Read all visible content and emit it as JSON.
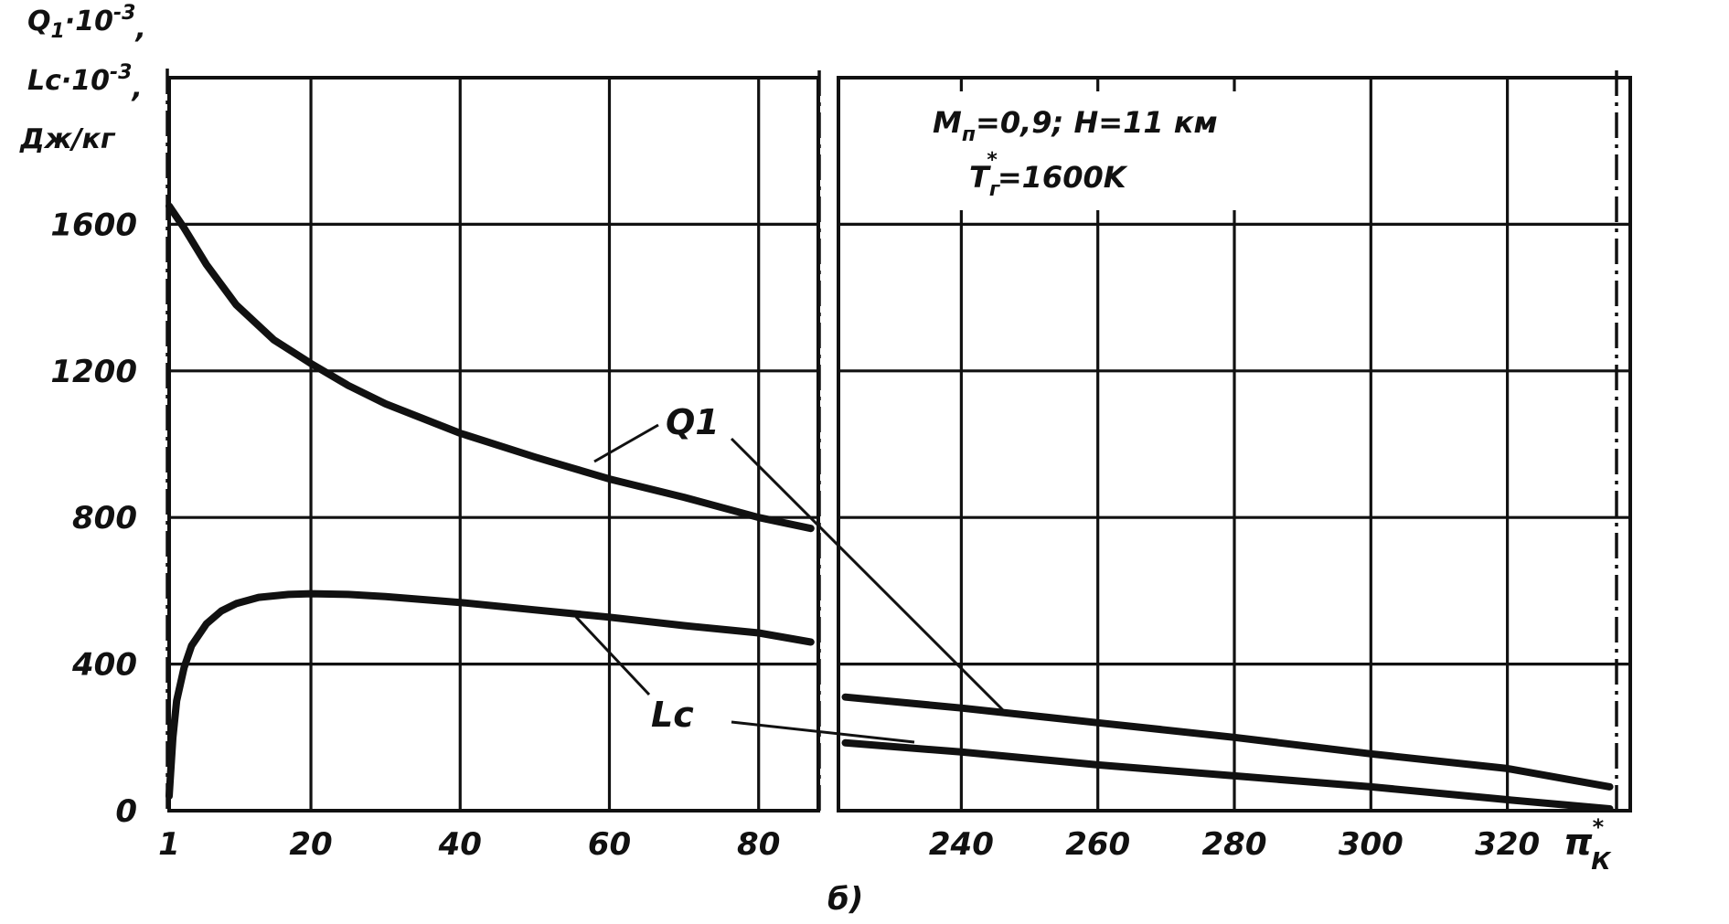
{
  "chart_data": {
    "type": "line",
    "y_axis": {
      "label_lines": [
        "Q",
        "1",
        "·10",
        "-3",
        ",",
        "Lc·10",
        "-3",
        ",",
        "Дж/кг"
      ],
      "ticks": [
        "0",
        "400",
        "800",
        "1200",
        "1600"
      ],
      "range": [
        0,
        2000
      ]
    },
    "x_axis": {
      "label": "π",
      "label_sup": "*",
      "label_sub": "К",
      "left_panel": {
        "ticks": [
          "1",
          "20",
          "40",
          "60",
          "80"
        ],
        "range": [
          1,
          88
        ]
      },
      "right_panel": {
        "ticks": [
          "240",
          "260",
          "280",
          "300",
          "320"
        ],
        "range": [
          222,
          338
        ]
      }
    },
    "annotation": {
      "line1_a": "M",
      "line1_sub": "п",
      "line1_b": "=0,9;  H=11 км",
      "line2_a": "T",
      "line2_sub": "г",
      "line2_sup": "*",
      "line2_b": "=1600K"
    },
    "caption": "б)",
    "series": [
      {
        "name": "Q1",
        "sub": "1",
        "x_left": [
          1,
          3,
          6,
          10,
          15,
          20,
          25,
          30,
          40,
          50,
          60,
          70,
          80,
          87
        ],
        "y_left": [
          1650,
          1590,
          1490,
          1380,
          1285,
          1220,
          1160,
          1110,
          1030,
          965,
          905,
          855,
          800,
          770
        ],
        "x_right": [
          223,
          240,
          260,
          280,
          300,
          320,
          335
        ],
        "y_right": [
          310,
          280,
          240,
          200,
          155,
          115,
          65
        ]
      },
      {
        "name": "Lc",
        "sub": "c",
        "x_left": [
          1,
          1.5,
          2,
          3,
          4,
          6,
          8,
          10,
          13,
          17,
          20,
          25,
          30,
          40,
          50,
          60,
          70,
          80,
          87
        ],
        "y_left": [
          40,
          200,
          300,
          390,
          450,
          510,
          545,
          565,
          582,
          590,
          592,
          590,
          584,
          568,
          548,
          528,
          505,
          485,
          460
        ],
        "x_right": [
          223,
          240,
          260,
          280,
          300,
          320,
          335
        ],
        "y_right": [
          185,
          160,
          125,
          95,
          65,
          30,
          5
        ]
      }
    ]
  }
}
